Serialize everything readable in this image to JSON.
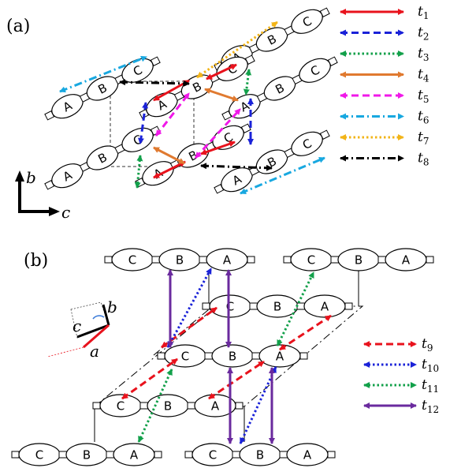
{
  "panel_a": {
    "label": "(a)",
    "axes": {
      "b": "b",
      "c": "c"
    },
    "legend": [
      {
        "id": "t1",
        "name": "t",
        "sub": "1",
        "color": "#e8121c",
        "style": "solid"
      },
      {
        "id": "t2",
        "name": "t",
        "sub": "2",
        "color": "#1a22d8",
        "style": "dashed"
      },
      {
        "id": "t3",
        "name": "t",
        "sub": "3",
        "color": "#12a04a",
        "style": "dotted"
      },
      {
        "id": "t4",
        "name": "t",
        "sub": "4",
        "color": "#e07a30",
        "style": "solid"
      },
      {
        "id": "t5",
        "name": "t",
        "sub": "5",
        "color": "#f018e8",
        "style": "dashed"
      },
      {
        "id": "t6",
        "name": "t",
        "sub": "6",
        "color": "#18a8e0",
        "style": "dashdot"
      },
      {
        "id": "t7",
        "name": "t",
        "sub": "7",
        "color": "#f2b418",
        "style": "dotted"
      },
      {
        "id": "t8",
        "name": "t",
        "sub": "8",
        "color": "#000000",
        "style": "dashdot"
      }
    ]
  },
  "panel_b": {
    "label": "(b)",
    "axes": {
      "a": "a",
      "b": "b",
      "c": "c"
    },
    "legend": [
      {
        "id": "t9",
        "name": "t",
        "sub": "9",
        "color": "#e8121c",
        "style": "dashed"
      },
      {
        "id": "t10",
        "name": "t",
        "sub": "10",
        "color": "#1a22d8",
        "style": "dotted"
      },
      {
        "id": "t11",
        "name": "t",
        "sub": "11",
        "color": "#12a04a",
        "style": "dotted"
      },
      {
        "id": "t12",
        "name": "t",
        "sub": "12",
        "color": "#6a2a9e",
        "style": "solid"
      }
    ]
  },
  "molecule_labels": {
    "A": "A",
    "B": "B",
    "C": "C"
  }
}
